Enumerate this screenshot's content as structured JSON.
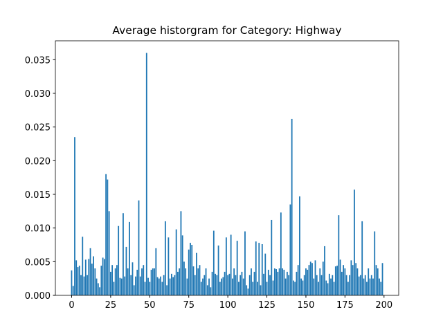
{
  "chart_data": {
    "type": "bar",
    "title": "Average historgram for Category: Highway",
    "x": [
      0,
      1,
      2,
      3,
      4,
      5,
      6,
      7,
      8,
      9,
      10,
      11,
      12,
      13,
      14,
      15,
      16,
      17,
      18,
      19,
      20,
      21,
      22,
      23,
      24,
      25,
      26,
      27,
      28,
      29,
      30,
      31,
      32,
      33,
      34,
      35,
      36,
      37,
      38,
      39,
      40,
      41,
      42,
      43,
      44,
      45,
      46,
      47,
      48,
      49,
      50,
      51,
      52,
      53,
      54,
      55,
      56,
      57,
      58,
      59,
      60,
      61,
      62,
      63,
      64,
      65,
      66,
      67,
      68,
      69,
      70,
      71,
      72,
      73,
      74,
      75,
      76,
      77,
      78,
      79,
      80,
      81,
      82,
      83,
      84,
      85,
      86,
      87,
      88,
      89,
      90,
      91,
      92,
      93,
      94,
      95,
      96,
      97,
      98,
      99,
      100,
      101,
      102,
      103,
      104,
      105,
      106,
      107,
      108,
      109,
      110,
      111,
      112,
      113,
      114,
      115,
      116,
      117,
      118,
      119,
      120,
      121,
      122,
      123,
      124,
      125,
      126,
      127,
      128,
      129,
      130,
      131,
      132,
      133,
      134,
      135,
      136,
      137,
      138,
      139,
      140,
      141,
      142,
      143,
      144,
      145,
      146,
      147,
      148,
      149,
      150,
      151,
      152,
      153,
      154,
      155,
      156,
      157,
      158,
      159,
      160,
      161,
      162,
      163,
      164,
      165,
      166,
      167,
      168,
      169,
      170,
      171,
      172,
      173,
      174,
      175,
      176,
      177,
      178,
      179,
      180,
      181,
      182,
      183,
      184,
      185,
      186,
      187,
      188,
      189,
      190,
      191,
      192,
      193,
      194,
      195,
      196,
      197,
      198,
      199
    ],
    "values": [
      0.0037,
      0.0014,
      0.0235,
      0.0052,
      0.0042,
      0.0044,
      0.003,
      0.0087,
      0.0028,
      0.0053,
      0.003,
      0.0054,
      0.007,
      0.0047,
      0.0058,
      0.004,
      0.0025,
      0.0018,
      0.0012,
      0.0044,
      0.0056,
      0.0054,
      0.018,
      0.0172,
      0.0125,
      0.0035,
      0.0045,
      0.002,
      0.004,
      0.0045,
      0.0103,
      0.0026,
      0.0025,
      0.0122,
      0.0028,
      0.0072,
      0.004,
      0.0109,
      0.003,
      0.0049,
      0.0015,
      0.0028,
      0.0038,
      0.0141,
      0.0028,
      0.004,
      0.0045,
      0.002,
      0.036,
      0.0026,
      0.002,
      0.0038,
      0.004,
      0.004,
      0.007,
      0.0027,
      0.0025,
      0.0028,
      0.002,
      0.003,
      0.011,
      0.0015,
      0.0086,
      0.0025,
      0.0032,
      0.0027,
      0.003,
      0.0098,
      0.0035,
      0.004,
      0.0125,
      0.0089,
      0.005,
      0.004,
      0.0025,
      0.0068,
      0.0078,
      0.0075,
      0.0043,
      0.003,
      0.0063,
      0.004,
      0.0045,
      0.002,
      0.0025,
      0.003,
      0.004,
      0.0015,
      0.0025,
      0.0012,
      0.0035,
      0.0096,
      0.0032,
      0.003,
      0.0074,
      0.002,
      0.0025,
      0.0027,
      0.0035,
      0.0086,
      0.003,
      0.0032,
      0.009,
      0.0025,
      0.004,
      0.003,
      0.0081,
      0.002,
      0.003,
      0.0035,
      0.0025,
      0.0095,
      0.0015,
      0.001,
      0.003,
      0.004,
      0.002,
      0.0035,
      0.008,
      0.002,
      0.0078,
      0.0015,
      0.0076,
      0.0032,
      0.0062,
      0.002,
      0.0038,
      0.003,
      0.0112,
      0.0022,
      0.004,
      0.0039,
      0.0035,
      0.004,
      0.0123,
      0.004,
      0.0038,
      0.0025,
      0.0035,
      0.003,
      0.0135,
      0.0262,
      0.0022,
      0.002,
      0.0035,
      0.0045,
      0.0147,
      0.0025,
      0.0022,
      0.003,
      0.004,
      0.0038,
      0.0045,
      0.005,
      0.0048,
      0.0025,
      0.0052,
      0.003,
      0.002,
      0.004,
      0.003,
      0.005,
      0.0073,
      0.0022,
      0.0018,
      0.0032,
      0.0025,
      0.003,
      0.002,
      0.0043,
      0.0044,
      0.0119,
      0.0053,
      0.0035,
      0.0045,
      0.004,
      0.003,
      0.002,
      0.003,
      0.0052,
      0.0045,
      0.0157,
      0.0048,
      0.004,
      0.0028,
      0.003,
      0.011,
      0.0025,
      0.003,
      0.002,
      0.004,
      0.0025,
      0.003,
      0.0025,
      0.0095,
      0.0045,
      0.004,
      0.0025,
      0.002,
      0.0048
    ],
    "color": "#1f77b4",
    "xlim": [
      -10.4,
      209.4
    ],
    "xticks": [
      0,
      25,
      50,
      75,
      100,
      125,
      150,
      175,
      200
    ],
    "ylim": [
      0,
      0.0378
    ],
    "yticks": [
      {
        "value": 0,
        "label": "0.000"
      },
      {
        "value": 0.005,
        "label": "0.005"
      },
      {
        "value": 0.01,
        "label": "0.010"
      },
      {
        "value": 0.015,
        "label": "0.015"
      },
      {
        "value": 0.02,
        "label": "0.020"
      },
      {
        "value": 0.025,
        "label": "0.025"
      },
      {
        "value": 0.03,
        "label": "0.030"
      },
      {
        "value": 0.035,
        "label": "0.035"
      }
    ],
    "grid": false
  }
}
